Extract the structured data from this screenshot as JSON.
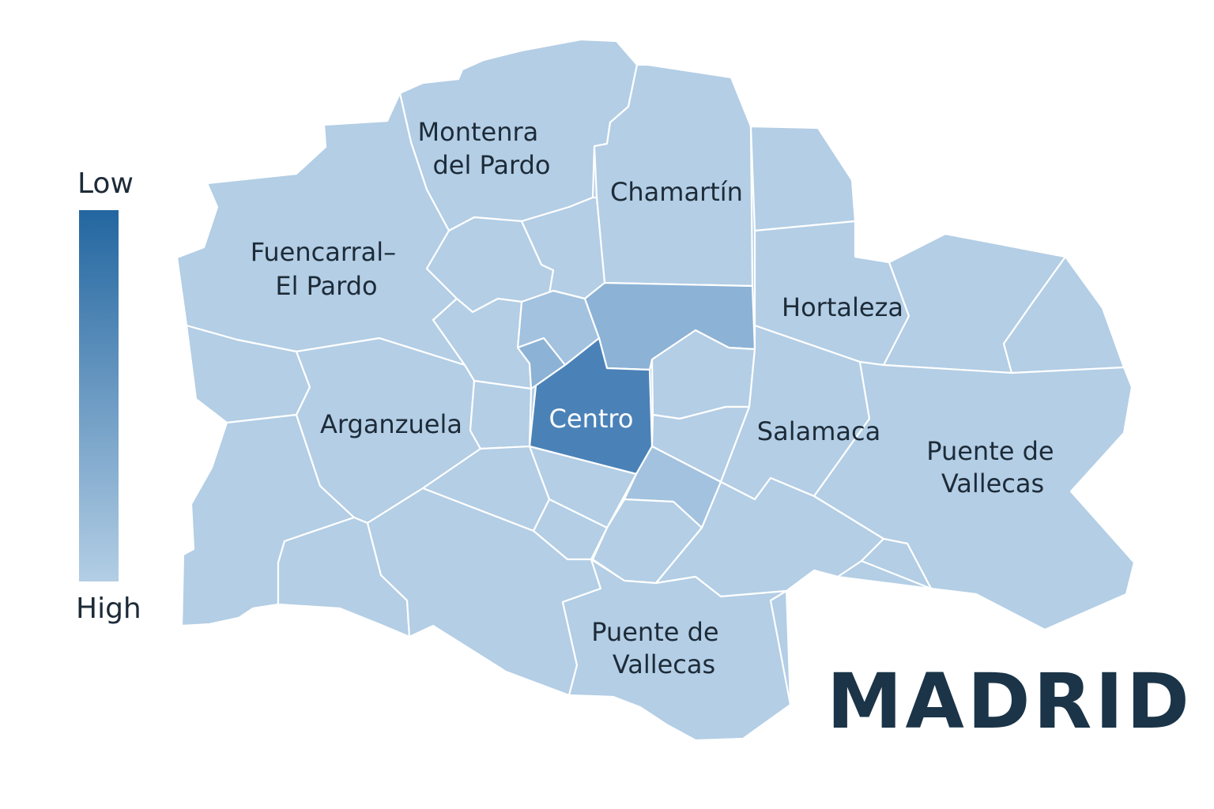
{
  "title": "MADRID",
  "legend": {
    "low_label": "Low",
    "high_label": "High",
    "color_low_end": "#2366a0",
    "color_high_end": "#b3cee5"
  },
  "colors": {
    "base": "#b3cee5",
    "mid_light": "#a2c2df",
    "mid": "#8cb2d5",
    "dark": "#4a82b8",
    "border": "#ffffff",
    "label": "#1d2b38"
  },
  "districts": [
    {
      "name": "Montenra\ndel Pardo",
      "shade": "base"
    },
    {
      "name": "Chamartín",
      "shade": "base"
    },
    {
      "name": "Fuencarral–\nEl Pardo",
      "shade": "base"
    },
    {
      "name": "Hortaleza",
      "shade": "base"
    },
    {
      "name": "Arganzuela",
      "shade": "base"
    },
    {
      "name": "Centro",
      "shade": "dark"
    },
    {
      "name": "Salamaca",
      "shade": "base"
    },
    {
      "name": "Puente de\nVallecas",
      "shade": "base"
    },
    {
      "name": "Puente de\nVallecas",
      "shade": "base"
    }
  ]
}
